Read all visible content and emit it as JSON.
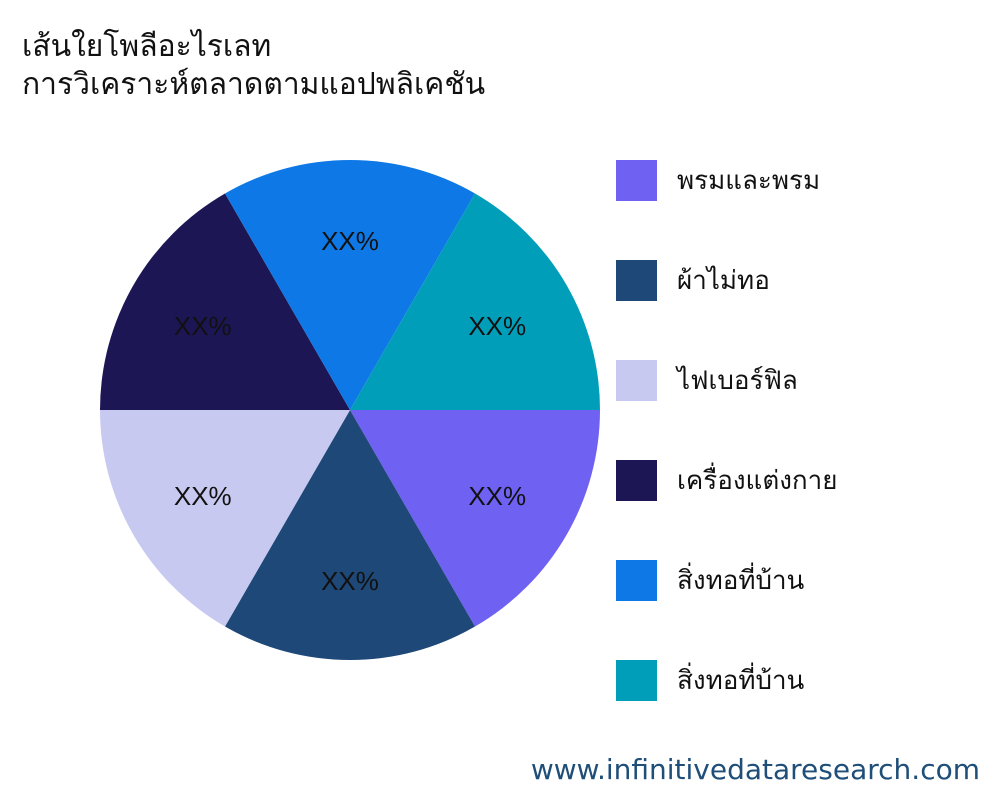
{
  "title": {
    "line1": "เส้นใยโพลีอะไรเลท",
    "line2": "การวิเคราะห์ตลาดตามแอปพลิเคชัน"
  },
  "chart_data": {
    "type": "pie",
    "title": "เส้นใยโพลีอะไรเลท การวิเคราะห์ตลาดตามแอปพลิเคชัน",
    "slices": [
      {
        "name": "พรมและพรม",
        "value": 16.67,
        "label": "XX%",
        "color": "#6f61f2"
      },
      {
        "name": "ผ้าไม่ทอ",
        "value": 16.67,
        "label": "XX%",
        "color": "#1e4877"
      },
      {
        "name": "ไฟเบอร์ฟิล",
        "value": 16.67,
        "label": "XX%",
        "color": "#c8c9f0"
      },
      {
        "name": "เครื่องแต่งกาย",
        "value": 16.67,
        "label": "XX%",
        "color": "#1c1654"
      },
      {
        "name": "สิ่งทอที่บ้าน",
        "value": 16.67,
        "label": "XX%",
        "color": "#0e79e6"
      },
      {
        "name": "สิ่งทอที่บ้าน",
        "value": 16.67,
        "label": "XX%",
        "color": "#009eb8"
      }
    ],
    "legend_position": "right"
  },
  "footer": "www.infinitivedataresearch.com"
}
